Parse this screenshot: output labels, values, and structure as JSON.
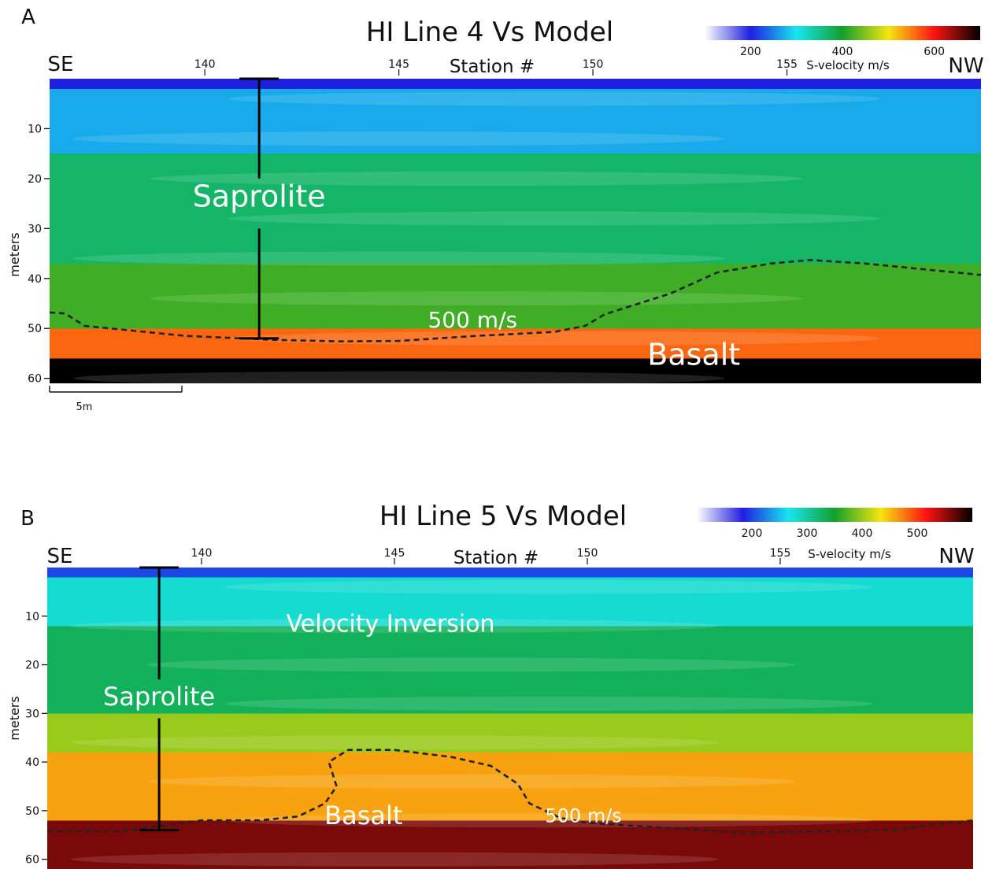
{
  "figure": {
    "colormap": [
      "#ffffff",
      "#1f1fe0",
      "#17e6f0",
      "#12a02c",
      "#f4e60f",
      "#ff1212",
      "#000000"
    ],
    "dashed_color": "#222222",
    "bar_color": "#000000"
  },
  "chart_data": [
    {
      "type": "heatmap",
      "panel_letter": "A",
      "title": "HI Line 4 Vs Model",
      "left_label": "SE",
      "right_label": "NW",
      "xlabel": "Station #",
      "ylabel": "meters",
      "x_ticks": [
        140,
        145,
        150,
        155
      ],
      "xlim": [
        136.0,
        160.0
      ],
      "y_ticks": [
        10,
        20,
        30,
        40,
        50,
        60
      ],
      "ylim": [
        0,
        61
      ],
      "colorbar": {
        "label": "S-velocity m/s",
        "ticks": [
          200,
          400,
          600
        ],
        "range": [
          100,
          700
        ]
      },
      "scale_bar_label": "5m",
      "scale_bar_length_stations": 3.4,
      "velocity_layers": [
        {
          "depth_top": 0,
          "depth_bottom": 2,
          "vs_ms": 200
        },
        {
          "depth_top": 2,
          "depth_bottom": 15,
          "vs_ms": 270
        },
        {
          "depth_top": 15,
          "depth_bottom": 37,
          "vs_ms": 370
        },
        {
          "depth_top": 37,
          "depth_bottom": 50,
          "vs_ms": 420
        },
        {
          "depth_top": 50,
          "depth_bottom": 56,
          "vs_ms": 560
        },
        {
          "depth_top": 56,
          "depth_bottom": 61,
          "vs_ms": 700
        }
      ],
      "contour": {
        "label": "500 m/s",
        "points": [
          [
            136.0,
            46.8
          ],
          [
            136.4,
            47
          ],
          [
            136.9,
            49.5
          ],
          [
            139.5,
            51.5
          ],
          [
            141.8,
            52.3
          ],
          [
            143.5,
            52.6
          ],
          [
            145.0,
            52.5
          ],
          [
            147.0,
            51.5
          ],
          [
            149.0,
            50.7
          ],
          [
            149.8,
            49.5
          ],
          [
            150.3,
            47.2
          ],
          [
            152.0,
            43.0
          ],
          [
            153.2,
            38.8
          ],
          [
            154.6,
            37.0
          ],
          [
            155.6,
            36.3
          ],
          [
            157.0,
            37.0
          ],
          [
            160.0,
            39.3
          ]
        ]
      },
      "range_bar": {
        "station": 141.4,
        "top": 0,
        "bottom": 52,
        "label": "Saprolite",
        "gap": [
          20,
          30
        ]
      },
      "annotations": [
        {
          "text": "Saprolite",
          "station": 141.4,
          "depth": 23.5,
          "color": "#ffffff",
          "size": 38
        },
        {
          "text": "500 m/s",
          "station": 146.9,
          "depth": 48.3,
          "color": "#ffffff",
          "size": 28
        },
        {
          "text": "Basalt",
          "station": 152.6,
          "depth": 55.2,
          "color": "#ffffff",
          "size": 38
        }
      ]
    },
    {
      "type": "heatmap",
      "panel_letter": "B",
      "title": "HI Line 5 Vs Model",
      "left_label": "SE",
      "right_label": "NW",
      "xlabel": "Station #",
      "ylabel": "meters",
      "x_ticks": [
        140,
        145,
        150,
        155
      ],
      "xlim": [
        136.0,
        160.0
      ],
      "y_ticks": [
        10,
        20,
        30,
        40,
        50,
        60
      ],
      "ylim": [
        0,
        62
      ],
      "colorbar": {
        "label": "S-velocity m/s",
        "ticks": [
          200,
          300,
          400,
          500
        ],
        "range": [
          100,
          600
        ]
      },
      "velocity_layers": [
        {
          "depth_top": 0,
          "depth_bottom": 2,
          "vs_ms": 200
        },
        {
          "depth_top": 2,
          "depth_bottom": 12,
          "vs_ms": 280
        },
        {
          "depth_top": 12,
          "depth_bottom": 30,
          "vs_ms": 330
        },
        {
          "depth_top": 30,
          "depth_bottom": 38,
          "vs_ms": 400
        },
        {
          "depth_top": 38,
          "depth_bottom": 52,
          "vs_ms": 460
        },
        {
          "depth_top": 52,
          "depth_bottom": 62,
          "vs_ms": 560
        }
      ],
      "contour": {
        "label": "500 m/s",
        "points": [
          [
            136.0,
            54.2
          ],
          [
            138.0,
            54.2
          ],
          [
            138.6,
            53.5
          ],
          [
            140.0,
            52.0
          ],
          [
            141.5,
            52.0
          ],
          [
            142.5,
            51.2
          ],
          [
            143.2,
            48.5
          ],
          [
            143.5,
            45.0
          ],
          [
            143.3,
            40.0
          ],
          [
            143.8,
            37.5
          ],
          [
            145.0,
            37.5
          ],
          [
            146.5,
            39.0
          ],
          [
            147.5,
            40.8
          ],
          [
            148.2,
            44.5
          ],
          [
            148.5,
            48.5
          ],
          [
            149.3,
            51.5
          ],
          [
            150.0,
            52.5
          ],
          [
            152.0,
            53.5
          ],
          [
            154.0,
            54.5
          ],
          [
            158.0,
            54.0
          ],
          [
            159.0,
            52.8
          ],
          [
            160.0,
            52.0
          ]
        ]
      },
      "range_bar": {
        "station": 138.9,
        "top": 0,
        "bottom": 54,
        "label": "Saprolite",
        "gap": [
          23,
          31
        ]
      },
      "annotations": [
        {
          "text": "Velocity Inversion",
          "station": 144.9,
          "depth": 11.5,
          "color": "#ffffff",
          "size": 30
        },
        {
          "text": "Saprolite",
          "station": 138.9,
          "depth": 26.5,
          "color": "#ffffff",
          "size": 32
        },
        {
          "text": "Basalt",
          "station": 144.2,
          "depth": 51.0,
          "color": "#ffffff",
          "size": 32
        },
        {
          "text": "500 m/s",
          "station": 149.9,
          "depth": 51.0,
          "color": "#ffffff",
          "size": 24
        }
      ]
    }
  ]
}
